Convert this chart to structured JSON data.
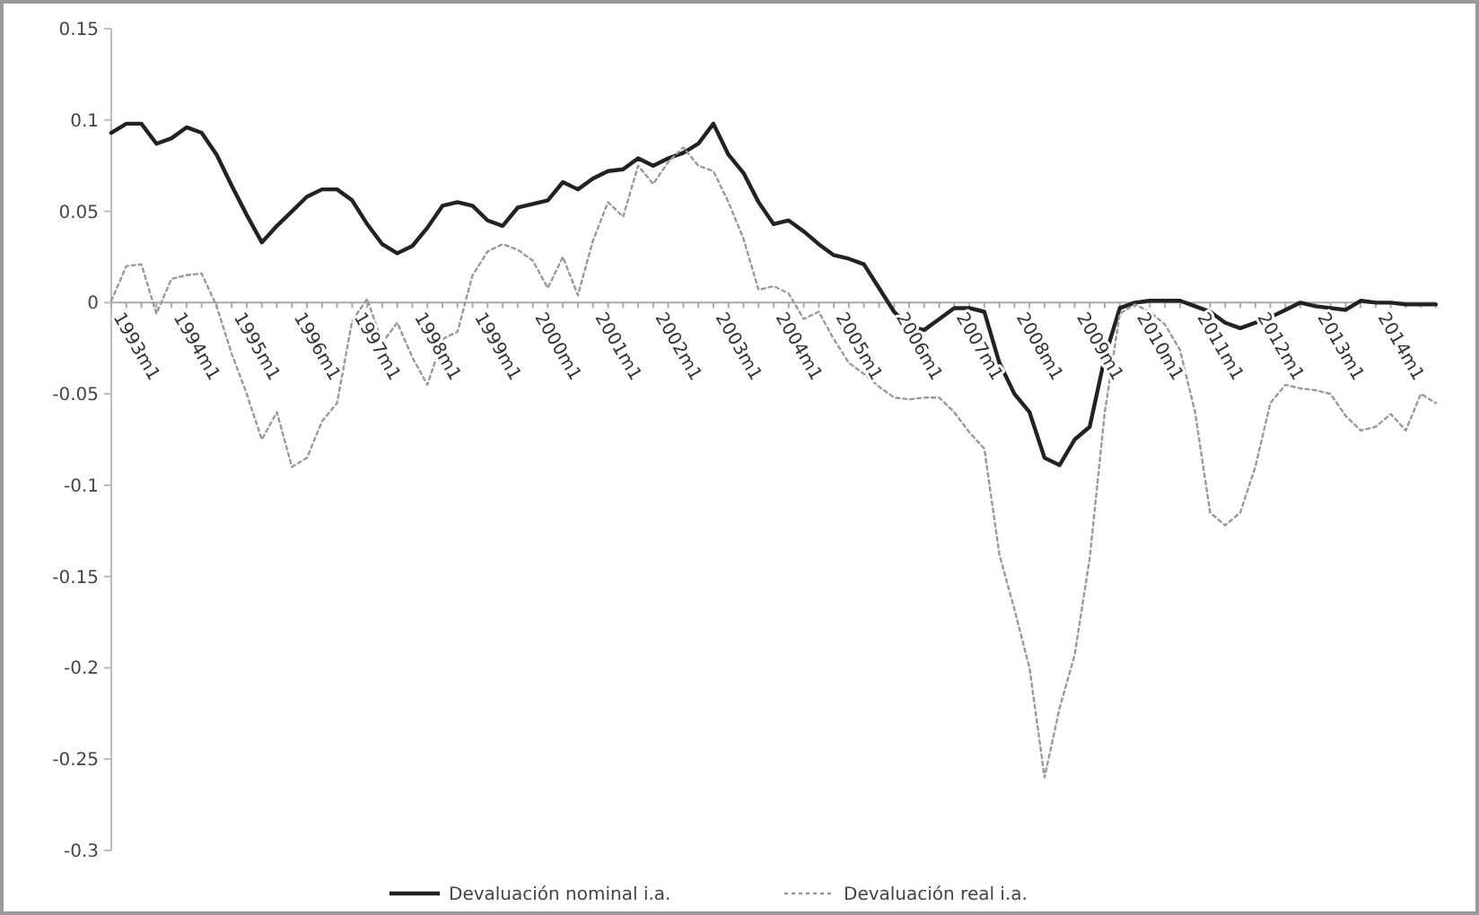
{
  "chart_data": {
    "type": "line",
    "ylim": [
      -0.3,
      0.15
    ],
    "categories": [
      "1993m1",
      null,
      null,
      null,
      "1994m1",
      null,
      null,
      null,
      "1995m1",
      null,
      null,
      null,
      "1996m1",
      null,
      null,
      null,
      "1997m1",
      null,
      null,
      null,
      "1998m1",
      null,
      null,
      null,
      "1999m1",
      null,
      null,
      null,
      "2000m1",
      null,
      null,
      null,
      "2001m1",
      null,
      null,
      null,
      "2002m1",
      null,
      null,
      null,
      "2003m1",
      null,
      null,
      null,
      "2004m1",
      null,
      null,
      null,
      "2005m1",
      null,
      null,
      null,
      "2006m1",
      null,
      null,
      null,
      "2007m1",
      null,
      null,
      null,
      "2008m1",
      null,
      null,
      null,
      "2009m1",
      null,
      null,
      null,
      "2010m1",
      null,
      null,
      null,
      "2011m1",
      null,
      null,
      null,
      "2012m1",
      null,
      null,
      null,
      "2013m1",
      null,
      null,
      null,
      "2014m1",
      null,
      null,
      null,
      null
    ],
    "yticks": [
      0.15,
      0.1,
      0.05,
      0,
      -0.05,
      -0.1,
      -0.15,
      -0.2,
      -0.25,
      -0.3
    ],
    "legend": "bottom",
    "series": [
      {
        "name": "Devaluación nominal i.a.",
        "color": "#222222",
        "line_style": "solid",
        "values": [
          0.093,
          0.098,
          0.098,
          0.087,
          0.09,
          0.096,
          0.093,
          0.081,
          0.064,
          0.048,
          0.033,
          0.042,
          0.05,
          0.058,
          0.062,
          0.062,
          0.056,
          0.043,
          0.032,
          0.027,
          0.031,
          0.041,
          0.053,
          0.055,
          0.053,
          0.045,
          0.042,
          0.052,
          0.054,
          0.056,
          0.066,
          0.062,
          0.068,
          0.072,
          0.073,
          0.079,
          0.075,
          0.079,
          0.082,
          0.087,
          0.098,
          0.081,
          0.071,
          0.055,
          0.043,
          0.045,
          0.039,
          0.032,
          0.026,
          0.024,
          0.021,
          0.008,
          -0.005,
          -0.013,
          -0.015,
          -0.009,
          -0.003,
          -0.003,
          -0.005,
          -0.033,
          -0.05,
          -0.06,
          -0.085,
          -0.089,
          -0.075,
          -0.068,
          -0.03,
          -0.003,
          0,
          0.001,
          0.001,
          0.001,
          -0.002,
          -0.005,
          -0.011,
          -0.014,
          -0.011,
          -0.008,
          -0.004,
          0,
          -0.002,
          -0.003,
          -0.004,
          0.001,
          0,
          0,
          -0.001,
          -0.001,
          -0.001
        ]
      },
      {
        "name": "Devaluación real i.a.",
        "color": "#999999",
        "line_style": "dotted",
        "values": [
          0.001,
          0.02,
          0.021,
          -0.006,
          0.013,
          0.015,
          0.016,
          -0.002,
          -0.028,
          -0.05,
          -0.075,
          -0.06,
          -0.09,
          -0.085,
          -0.065,
          -0.055,
          -0.01,
          0.002,
          -0.022,
          -0.011,
          -0.03,
          -0.045,
          -0.02,
          -0.016,
          0.015,
          0.028,
          0.032,
          0.029,
          0.023,
          0.008,
          0.025,
          0.004,
          0.034,
          0.055,
          0.047,
          0.075,
          0.065,
          0.077,
          0.085,
          0.075,
          0.072,
          0.055,
          0.035,
          0.007,
          0.009,
          0.005,
          -0.009,
          -0.005,
          -0.02,
          -0.033,
          -0.039,
          -0.046,
          -0.052,
          -0.053,
          -0.052,
          -0.052,
          -0.06,
          -0.071,
          -0.08,
          -0.138,
          -0.168,
          -0.2,
          -0.26,
          -0.222,
          -0.193,
          -0.14,
          -0.06,
          -0.006,
          -0.001,
          -0.005,
          -0.012,
          -0.026,
          -0.06,
          -0.115,
          -0.122,
          -0.115,
          -0.09,
          -0.055,
          -0.045,
          -0.047,
          -0.048,
          -0.05,
          -0.062,
          -0.07,
          -0.068,
          -0.061,
          -0.07,
          -0.05,
          -0.055
        ]
      }
    ]
  }
}
